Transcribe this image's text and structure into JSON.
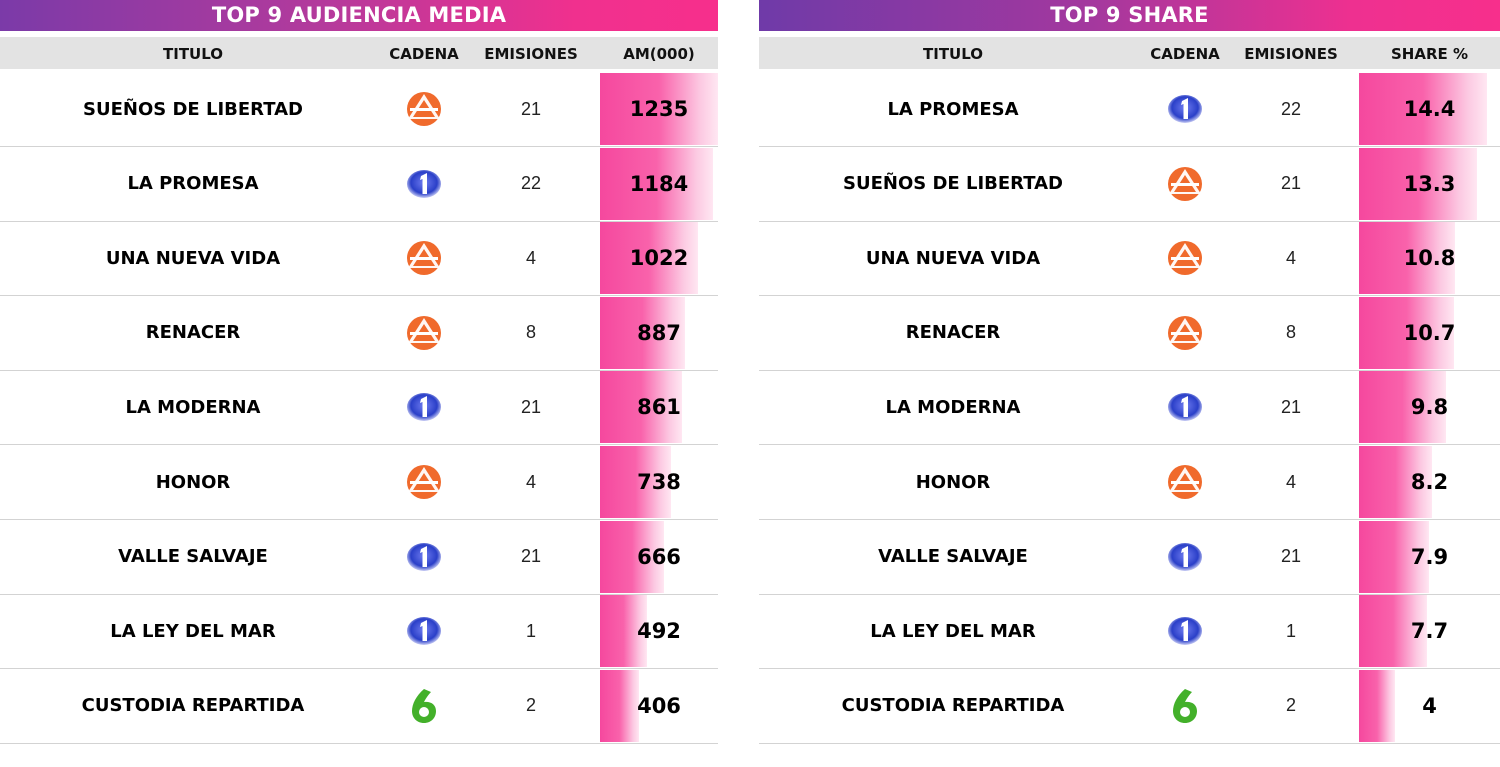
{
  "colors": {
    "bar_pink": "#f5489e",
    "antena3_orange": "#f06a2c",
    "tve1_blue": "#2a3fc8",
    "lasexta_green": "#43b02a",
    "header_gray": "#e3e3e3"
  },
  "channels": {
    "antena3": "antena3-logo-icon",
    "tve1": "la1-logo-icon",
    "lasexta": "lasexta-logo-icon"
  },
  "chart_data": [
    {
      "type": "table",
      "title": "TOP 9 AUDIENCIA MEDIA",
      "columns": [
        "TITULO",
        "CADENA",
        "EMISIONES",
        "AM(000)"
      ],
      "rows": [
        {
          "titulo": "SUEÑOS DE LIBERTAD",
          "cadena": "antena3",
          "emisiones": "21",
          "value": "1235"
        },
        {
          "titulo": "LA PROMESA",
          "cadena": "tve1",
          "emisiones": "22",
          "value": "1184"
        },
        {
          "titulo": "UNA NUEVA VIDA",
          "cadena": "antena3",
          "emisiones": "4",
          "value": "1022"
        },
        {
          "titulo": "RENACER",
          "cadena": "antena3",
          "emisiones": "8",
          "value": "887"
        },
        {
          "titulo": "LA MODERNA",
          "cadena": "tve1",
          "emisiones": "21",
          "value": "861"
        },
        {
          "titulo": "HONOR",
          "cadena": "antena3",
          "emisiones": "4",
          "value": "738"
        },
        {
          "titulo": "VALLE SALVAJE",
          "cadena": "tve1",
          "emisiones": "21",
          "value": "666"
        },
        {
          "titulo": "LA LEY DEL MAR",
          "cadena": "tve1",
          "emisiones": "1",
          "value": "492"
        },
        {
          "titulo": "CUSTODIA REPARTIDA",
          "cadena": "lasexta",
          "emisiones": "2",
          "value": "406"
        }
      ],
      "bar_max": 1235
    },
    {
      "type": "table",
      "title": "TOP 9 SHARE",
      "columns": [
        "TITULO",
        "CADENA",
        "EMISIONES",
        "SHARE %"
      ],
      "rows": [
        {
          "titulo": "LA PROMESA",
          "cadena": "tve1",
          "emisiones": "22",
          "value": "14.4"
        },
        {
          "titulo": "SUEÑOS DE LIBERTAD",
          "cadena": "antena3",
          "emisiones": "21",
          "value": "13.3"
        },
        {
          "titulo": "UNA NUEVA VIDA",
          "cadena": "antena3",
          "emisiones": "4",
          "value": "10.8"
        },
        {
          "titulo": "RENACER",
          "cadena": "antena3",
          "emisiones": "8",
          "value": "10.7"
        },
        {
          "titulo": "LA MODERNA",
          "cadena": "tve1",
          "emisiones": "21",
          "value": "9.8"
        },
        {
          "titulo": "HONOR",
          "cadena": "antena3",
          "emisiones": "4",
          "value": "8.2"
        },
        {
          "titulo": "VALLE SALVAJE",
          "cadena": "tve1",
          "emisiones": "21",
          "value": "7.9"
        },
        {
          "titulo": "LA LEY DEL MAR",
          "cadena": "tve1",
          "emisiones": "1",
          "value": "7.7"
        },
        {
          "titulo": "CUSTODIA REPARTIDA",
          "cadena": "lasexta",
          "emisiones": "2",
          "value": "4"
        }
      ],
      "bar_max": 14.4
    }
  ]
}
